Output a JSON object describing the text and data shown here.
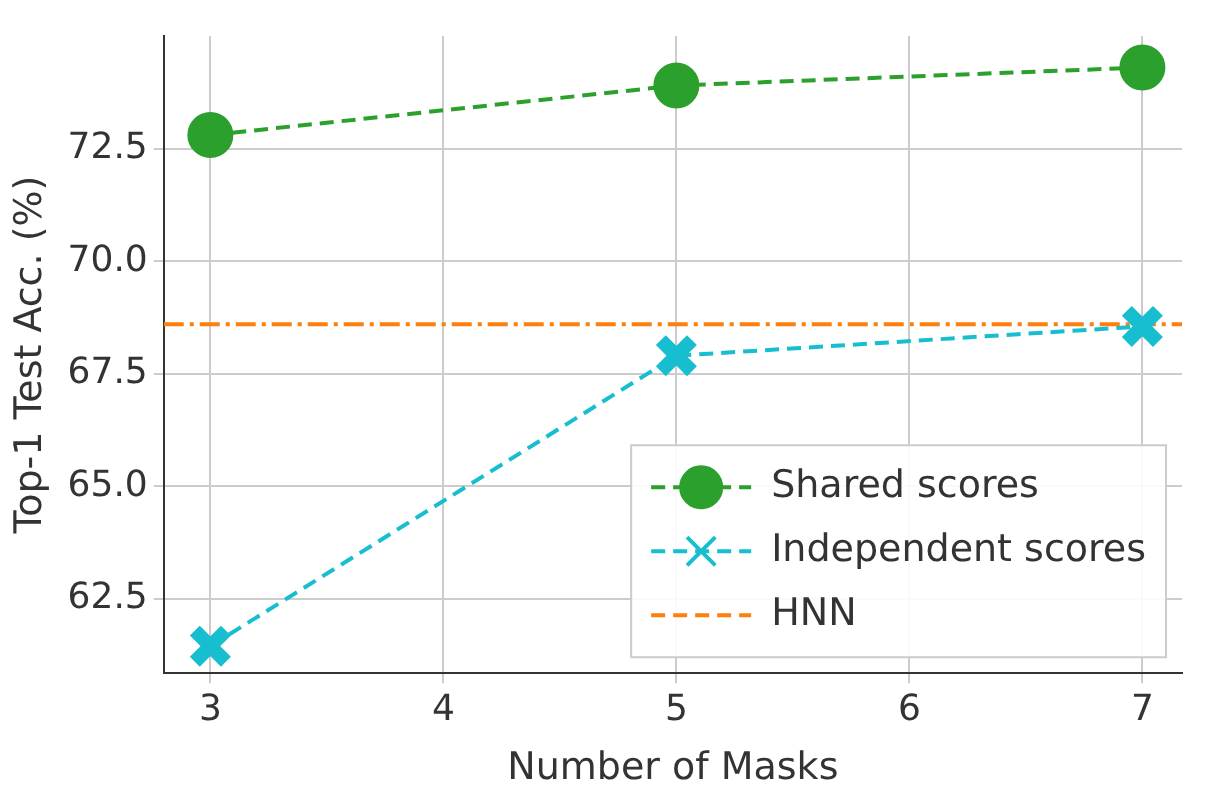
{
  "chart_data": {
    "type": "line",
    "xlabel": "Number of Masks",
    "ylabel": "Top-1 Test Acc. (%)",
    "x": [
      3,
      5,
      7
    ],
    "series": [
      {
        "name": "Shared scores",
        "color": "#2ca02c",
        "values": [
          72.8,
          73.9,
          74.3
        ],
        "marker": "circle",
        "line_style": "dashed"
      },
      {
        "name": "Independent scores",
        "color": "#17becf",
        "values": [
          61.45,
          67.9,
          68.55
        ],
        "marker": "cross",
        "line_style": "dashed"
      }
    ],
    "ref_lines": [
      {
        "axis": "y",
        "value": 68.6,
        "label": "HNN",
        "color": "#ff7f0e",
        "line_style": "dashed"
      }
    ],
    "xlim": [
      2.8,
      7.17
    ],
    "xticks": [
      3,
      4,
      5,
      6,
      7
    ],
    "ylim": [
      60.85,
      75.0
    ],
    "yticks": [
      {
        "value": 62.5,
        "label": "62.5"
      },
      {
        "value": 65,
        "label": "65.0"
      },
      {
        "value": 67.5,
        "label": "67.5"
      },
      {
        "value": 70,
        "label": "70.0"
      },
      {
        "value": 72.5,
        "label": "72.5"
      }
    ],
    "grid": true,
    "legend": "bottom right"
  }
}
